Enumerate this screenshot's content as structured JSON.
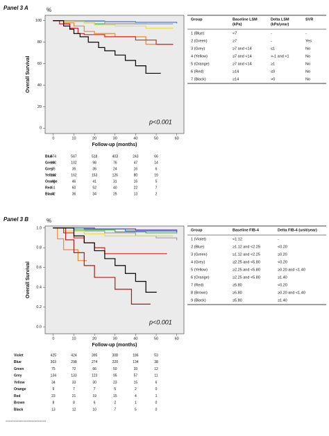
{
  "chart_data": [
    {
      "type": "step",
      "panel_label": "Panel 3 A",
      "unit_label": "%",
      "ylabel": "Overall Survival",
      "xlabel": "Follow-up (months)",
      "annotation": "p<0.001",
      "xlim": [
        -4,
        63.5
      ],
      "ylim": [
        -5,
        105
      ],
      "xticks": [
        0,
        10,
        20,
        30,
        40,
        50,
        60
      ],
      "yticks": [
        0,
        20,
        40,
        60,
        80,
        100
      ],
      "series": [
        {
          "color": "#3a6fd8",
          "x": [
            0,
            10,
            25,
            40,
            60
          ],
          "values": [
            100,
            99.5,
            99,
            98.5,
            98
          ]
        },
        {
          "color": "#4caf50",
          "x": [
            0,
            15,
            20,
            45
          ],
          "values": [
            100,
            98,
            97,
            97
          ]
        },
        {
          "color": "#a0a0a0",
          "x": [
            0,
            25,
            58
          ],
          "values": [
            100,
            97,
            97
          ]
        },
        {
          "color": "#e6dc50",
          "x": [
            0,
            5,
            15,
            20,
            30,
            45,
            58
          ],
          "values": [
            100,
            99,
            98,
            96,
            95,
            93,
            93
          ]
        },
        {
          "color": "#f08a30",
          "x": [
            0,
            5,
            10,
            15,
            20,
            30,
            45,
            58
          ],
          "values": [
            100,
            98,
            95,
            90,
            88,
            85,
            78,
            78
          ]
        },
        {
          "color": "#e02020",
          "x": [
            0,
            3,
            8,
            12,
            15,
            25,
            40,
            50,
            58
          ],
          "values": [
            100,
            97,
            93,
            88,
            87,
            85,
            82,
            78,
            78
          ]
        },
        {
          "color": "#000000",
          "x": [
            0,
            5,
            8,
            10,
            13,
            17,
            22,
            25,
            30,
            35,
            40,
            45,
            52
          ],
          "values": [
            100,
            95,
            92,
            88,
            85,
            80,
            75,
            72,
            68,
            63,
            58,
            51,
            51
          ]
        }
      ],
      "risk_table": {
        "rows": [
          {
            "name": "Blue",
            "counts": [
              574,
              567,
              518,
              403,
              243,
              66
            ]
          },
          {
            "name": "Green",
            "counts": [
              102,
              102,
              98,
              76,
              47,
              14
            ]
          },
          {
            "name": "Grey",
            "counts": [
              35,
              35,
              35,
              24,
              16,
              6
            ]
          },
          {
            "name": "Yellow",
            "counts": [
              162,
              162,
              153,
              126,
              80,
              19
            ]
          },
          {
            "name": "Orange",
            "counts": [
              48,
              46,
              41,
              31,
              16,
              5
            ]
          },
          {
            "name": "Red",
            "counts": [
              61,
              60,
              52,
              40,
              22,
              7
            ]
          },
          {
            "name": "Black",
            "counts": [
              42,
              36,
              34,
              25,
              13,
              2
            ]
          }
        ]
      },
      "group_table": {
        "columns": [
          [
            "Group"
          ],
          [
            "Baseline LSM",
            "(kPa)"
          ],
          [
            "Delta LSM",
            "(kPa/year)"
          ],
          [
            "SVR"
          ]
        ],
        "rows": [
          [
            "1 (Blue)",
            "<7",
            "-",
            "-"
          ],
          [
            "2 (Green)",
            "≥7",
            "-",
            "Yes"
          ],
          [
            "3 (Grey)",
            "≥7 and <14",
            "≤1",
            "No"
          ],
          [
            "4 (Yellow)",
            "≥7 and <14",
            ">-1 and <1",
            "No"
          ],
          [
            "5 (Orange)",
            "≥7 and <14",
            "≥1",
            "No"
          ],
          [
            "6 (Red)",
            "≥14",
            "≤0",
            "No"
          ],
          [
            "7 (Black)",
            "≥14",
            ">0",
            "No"
          ]
        ]
      }
    },
    {
      "type": "step",
      "panel_label": "Panel 3 B",
      "unit_label": "%",
      "ylabel": "Overall Survival",
      "xlabel": "Follow-up (months)",
      "annotation": "p<0.001",
      "xlim": [
        -4,
        63.5
      ],
      "ylim": [
        -0.07,
        1.02
      ],
      "xticks": [
        0,
        10,
        20,
        30,
        40,
        50,
        60
      ],
      "yticks": [
        {
          "value": 0,
          "label": "0.0"
        },
        0.2,
        0.4,
        0.6,
        0.8,
        {
          "value": 1,
          "label": "1.0"
        }
      ],
      "series": [
        {
          "color": "#6a3fb0",
          "x": [
            0,
            20,
            40,
            60
          ],
          "values": [
            1,
            0.99,
            0.98,
            0.97
          ]
        },
        {
          "color": "#3a6fd8",
          "x": [
            0,
            15,
            35,
            60
          ],
          "values": [
            1,
            0.99,
            0.97,
            0.96
          ]
        },
        {
          "color": "#4caf50",
          "x": [
            0,
            10,
            30,
            45,
            60
          ],
          "values": [
            1,
            0.98,
            0.96,
            0.95,
            0.95
          ]
        },
        {
          "color": "#a0a0a0",
          "x": [
            0,
            10,
            25,
            40,
            50,
            60
          ],
          "values": [
            1,
            0.97,
            0.95,
            0.92,
            0.9,
            0.88
          ]
        },
        {
          "color": "#e6dc50",
          "x": [
            0,
            5,
            15,
            25,
            45,
            58
          ],
          "values": [
            1,
            0.97,
            0.94,
            0.92,
            0.92,
            0.92
          ]
        },
        {
          "color": "#f08a30",
          "x": [
            0,
            2,
            5,
            12,
            16
          ],
          "values": [
            1,
            0.89,
            0.78,
            0.67,
            0.67
          ]
        },
        {
          "color": "#e02020",
          "x": [
            0,
            5,
            10,
            15,
            20,
            25,
            55
          ],
          "values": [
            1,
            0.95,
            0.9,
            0.85,
            0.8,
            0.74,
            0.74
          ]
        },
        {
          "color": "#b01818",
          "x": [
            0,
            6,
            10,
            15,
            20,
            30,
            38,
            47
          ],
          "values": [
            1,
            0.88,
            0.75,
            0.62,
            0.5,
            0.38,
            0.23,
            0.23
          ]
        },
        {
          "color": "#000000",
          "x": [
            0,
            10,
            15,
            20,
            25,
            30,
            35,
            40,
            45,
            50
          ],
          "values": [
            1,
            0.92,
            0.85,
            0.77,
            0.69,
            0.62,
            0.54,
            0.46,
            0.35,
            0.35
          ]
        }
      ],
      "risk_table": {
        "rows": [
          {
            "name": "Violet",
            "counts": [
              425,
              424,
              395,
              308,
              186,
              53
            ]
          },
          {
            "name": "Blue",
            "counts": [
              303,
              298,
              274,
              220,
              134,
              38
            ]
          },
          {
            "name": "Green",
            "counts": [
              75,
              72,
              66,
              50,
              33,
              12
            ]
          },
          {
            "name": "Grey",
            "counts": [
              134,
              133,
              123,
              95,
              57,
              11
            ]
          },
          {
            "name": "Yellow",
            "counts": [
              34,
              33,
              30,
              23,
              15,
              6
            ]
          },
          {
            "name": "Orange",
            "counts": [
              9,
              7,
              7,
              5,
              2,
              0
            ]
          },
          {
            "name": "Red",
            "counts": [
              23,
              21,
              19,
              15,
              4,
              1
            ]
          },
          {
            "name": "Brown",
            "counts": [
              8,
              8,
              6,
              2,
              1,
              0
            ]
          },
          {
            "name": "Black",
            "counts": [
              13,
              12,
              10,
              7,
              5,
              0
            ]
          }
        ]
      },
      "group_table": {
        "columns": [
          [
            "Group"
          ],
          [
            "Baseline FIB-4"
          ],
          [
            "Delta FIB-4 (unit/year)"
          ]
        ],
        "rows": [
          [
            "1 (Violet)",
            "<1.12",
            "-"
          ],
          [
            "2 (Blue)",
            "≥1.12 and <2.25",
            "<0.20"
          ],
          [
            "3 (Green)",
            "≥1.12 and <2.25",
            "≥0.20"
          ],
          [
            "4 (Grey)",
            "≥2.25 and <5.80",
            "<0.20"
          ],
          [
            "5 (Yellow)",
            "≥2.25 and <5.80",
            "≥0.20 and <1.40"
          ],
          [
            "6 (Orange)",
            "≥2.25 and <5.80",
            "≥1.40"
          ],
          [
            "7 (Red)",
            "≥5.80",
            "<0.20"
          ],
          [
            "8 (Brown)",
            "≥5.80",
            "≥0.20 and <1.40"
          ],
          [
            "9 (Black)",
            "≥5.80",
            "≥1.40"
          ]
        ]
      }
    }
  ],
  "footer_rule": "-------------------------"
}
